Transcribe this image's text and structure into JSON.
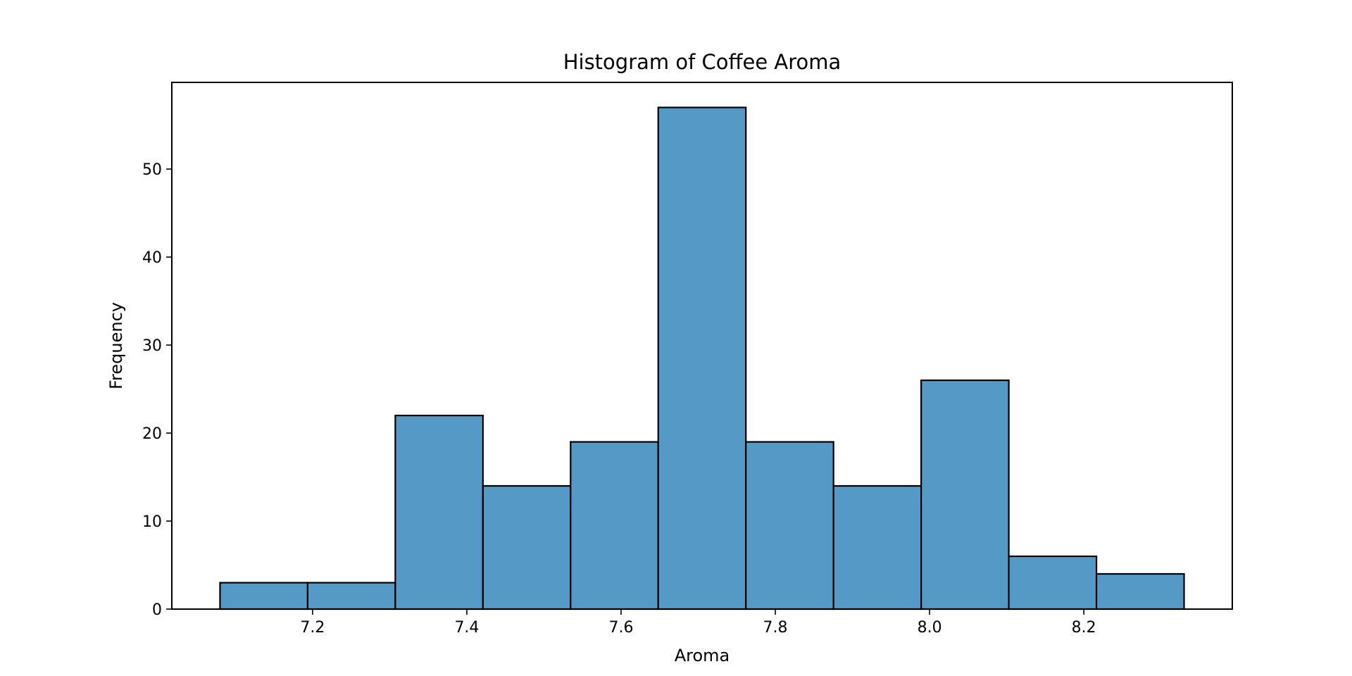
{
  "chart_data": {
    "type": "bar",
    "title": "Histogram of Coffee Aroma",
    "xlabel": "Aroma",
    "ylabel": "Frequency",
    "bins": [
      {
        "x0": 7.08,
        "x1": 7.19364,
        "value": 3
      },
      {
        "x0": 7.19364,
        "x1": 7.30727,
        "value": 3
      },
      {
        "x0": 7.30727,
        "x1": 7.42091,
        "value": 22
      },
      {
        "x0": 7.42091,
        "x1": 7.53455,
        "value": 14
      },
      {
        "x0": 7.53455,
        "x1": 7.64818,
        "value": 19
      },
      {
        "x0": 7.64818,
        "x1": 7.76182,
        "value": 57
      },
      {
        "x0": 7.76182,
        "x1": 7.87545,
        "value": 19
      },
      {
        "x0": 7.87545,
        "x1": 7.98909,
        "value": 14
      },
      {
        "x0": 7.98909,
        "x1": 8.10273,
        "value": 26
      },
      {
        "x0": 8.10273,
        "x1": 8.21636,
        "value": 6
      },
      {
        "x0": 8.21636,
        "x1": 8.33,
        "value": 4
      }
    ],
    "xlim": [
      7.0175,
      8.3925
    ],
    "ylim": [
      0,
      59.85
    ],
    "xticks": [
      7.2,
      7.4,
      7.6,
      7.8,
      8.0,
      8.2
    ],
    "xtick_labels": [
      "7.2",
      "7.4",
      "7.6",
      "7.8",
      "8.0",
      "8.2"
    ],
    "yticks": [
      0,
      10,
      20,
      30,
      40,
      50
    ],
    "ytick_labels": [
      "0",
      "10",
      "20",
      "30",
      "40",
      "50"
    ],
    "grid": false,
    "bar_color": "#5599c7",
    "edge_color": "#000000"
  }
}
